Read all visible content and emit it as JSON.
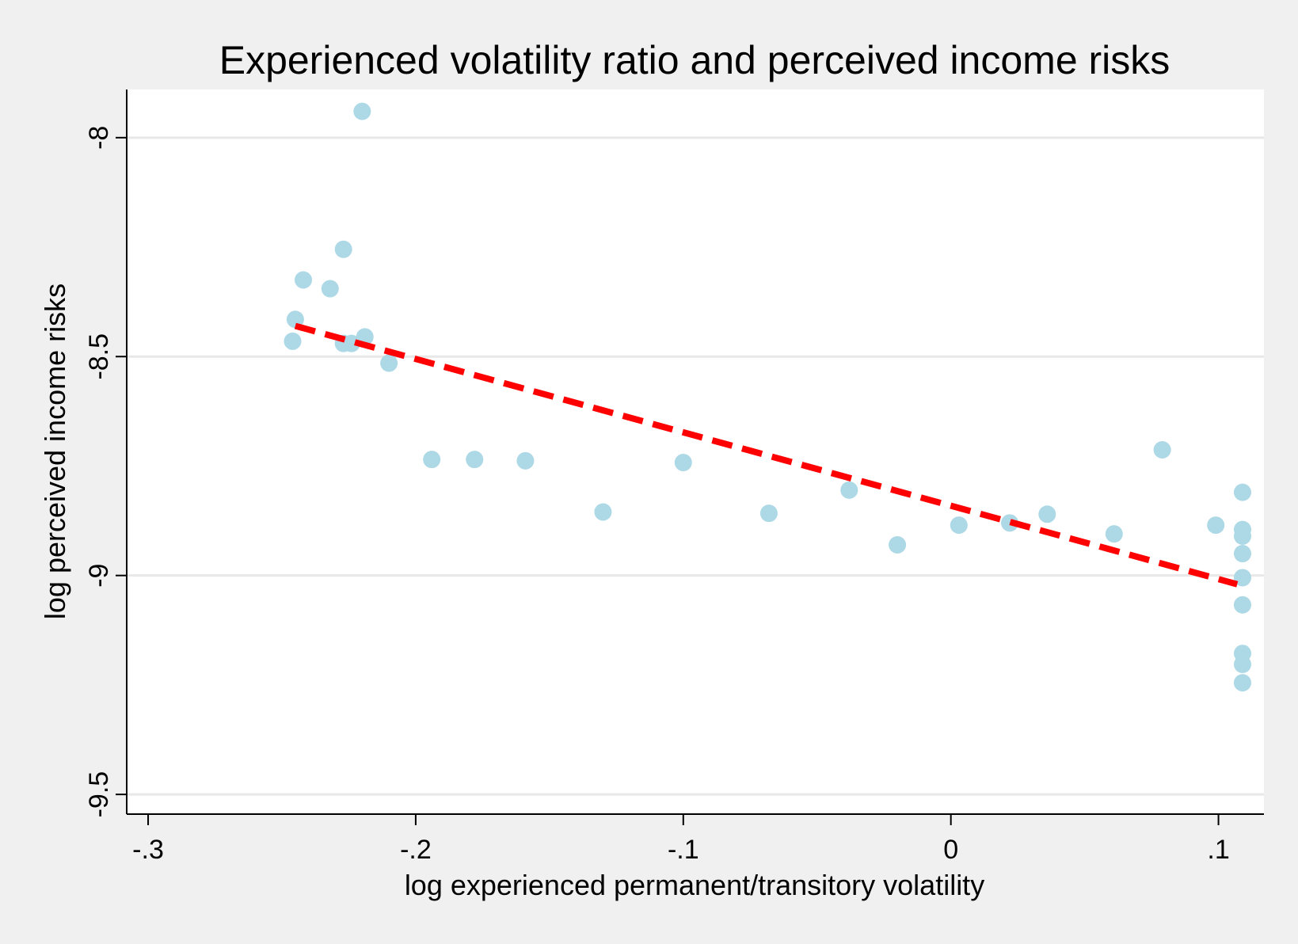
{
  "chart_data": {
    "type": "scatter",
    "title": "Experienced volatility ratio and perceived income risks",
    "xlabel": "log experienced permanent/transitory volatility",
    "ylabel": "log perceived income risks",
    "xlim": [
      -0.308,
      0.117
    ],
    "ylim": [
      -9.545,
      -7.89
    ],
    "x_ticks": [
      {
        "value": -0.3,
        "label": "-.3"
      },
      {
        "value": -0.2,
        "label": "-.2"
      },
      {
        "value": -0.1,
        "label": "-.1"
      },
      {
        "value": 0,
        "label": "0"
      },
      {
        "value": 0.1,
        "label": ".1"
      }
    ],
    "y_ticks": [
      {
        "value": -8,
        "label": "-8"
      },
      {
        "value": -8.5,
        "label": "-8.5"
      },
      {
        "value": -9,
        "label": "-9"
      },
      {
        "value": -9.5,
        "label": "-9.5"
      }
    ],
    "grid": true,
    "series": [
      {
        "name": "scatter",
        "color": "#add8e6",
        "points": [
          {
            "x": -0.22,
            "y": -7.94
          },
          {
            "x": -0.227,
            "y": -8.255
          },
          {
            "x": -0.242,
            "y": -8.325
          },
          {
            "x": -0.232,
            "y": -8.345
          },
          {
            "x": -0.245,
            "y": -8.415
          },
          {
            "x": -0.246,
            "y": -8.465
          },
          {
            "x": -0.227,
            "y": -8.47
          },
          {
            "x": -0.224,
            "y": -8.47
          },
          {
            "x": -0.219,
            "y": -8.455
          },
          {
            "x": -0.21,
            "y": -8.515
          },
          {
            "x": -0.194,
            "y": -8.735
          },
          {
            "x": -0.178,
            "y": -8.735
          },
          {
            "x": -0.159,
            "y": -8.738
          },
          {
            "x": -0.1,
            "y": -8.742
          },
          {
            "x": -0.13,
            "y": -8.855
          },
          {
            "x": -0.068,
            "y": -8.858
          },
          {
            "x": -0.038,
            "y": -8.805
          },
          {
            "x": -0.02,
            "y": -8.93
          },
          {
            "x": 0.003,
            "y": -8.885
          },
          {
            "x": 0.022,
            "y": -8.88
          },
          {
            "x": 0.036,
            "y": -8.86
          },
          {
            "x": 0.061,
            "y": -8.905
          },
          {
            "x": 0.079,
            "y": -8.713
          },
          {
            "x": 0.099,
            "y": -8.885
          },
          {
            "x": 0.109,
            "y": -8.81
          },
          {
            "x": 0.109,
            "y": -8.895
          },
          {
            "x": 0.109,
            "y": -8.91
          },
          {
            "x": 0.109,
            "y": -8.95
          },
          {
            "x": 0.109,
            "y": -9.005
          },
          {
            "x": 0.109,
            "y": -9.067
          },
          {
            "x": 0.109,
            "y": -9.178
          },
          {
            "x": 0.109,
            "y": -9.203
          },
          {
            "x": 0.109,
            "y": -9.245
          }
        ]
      },
      {
        "name": "fitted line",
        "type": "line",
        "style": "dashed",
        "color": "#ff0000",
        "points": [
          {
            "x": -0.245,
            "y": -8.43
          },
          {
            "x": 0.107,
            "y": -9.02
          }
        ]
      }
    ]
  }
}
